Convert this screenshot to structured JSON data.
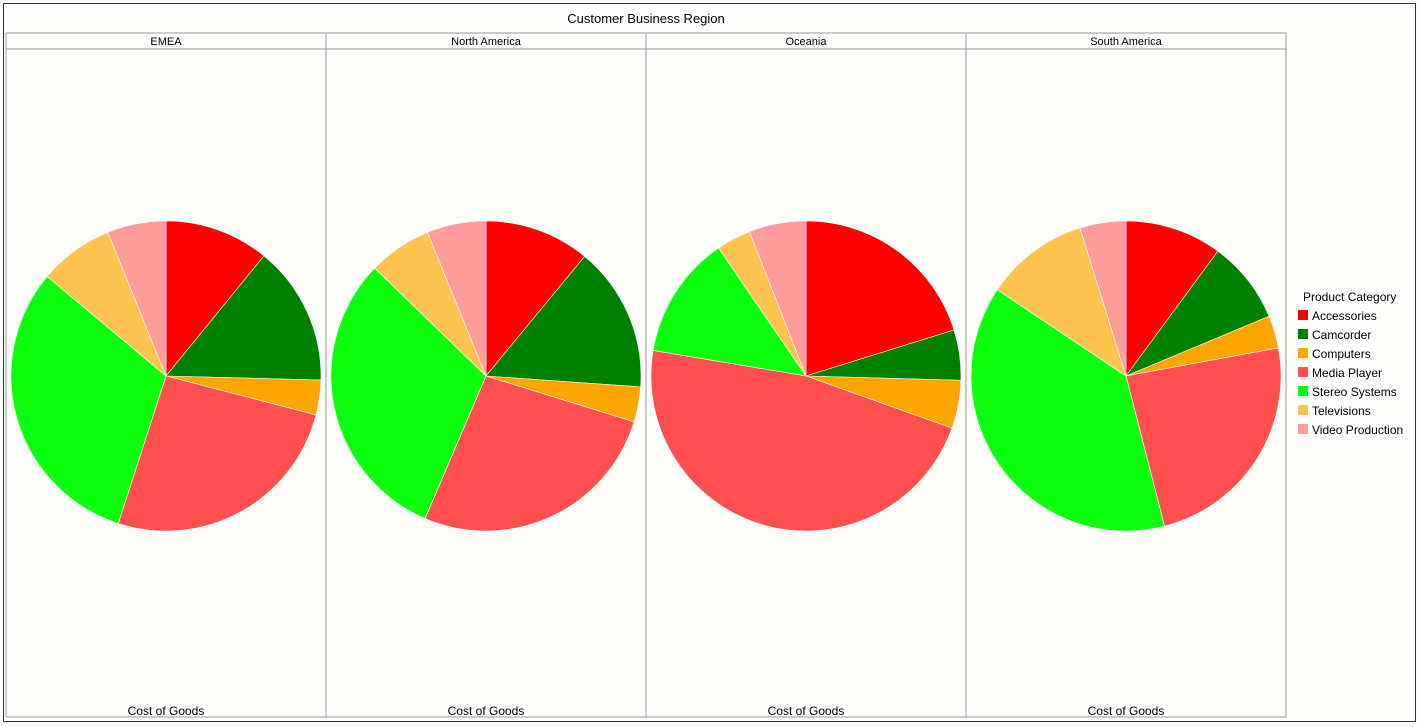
{
  "chart_data": {
    "type": "pie",
    "title": "Customer Business Region",
    "measure_label": "Cost of Goods",
    "legend": {
      "title": "Product Category",
      "placement": "right"
    },
    "categories": [
      "Accessories",
      "Camcorder",
      "Computers",
      "Media Player",
      "Stereo Systems",
      "Televisions",
      "Video Production"
    ],
    "colors": [
      "#ff0000",
      "#008000",
      "#ffa500",
      "#ff4f4f",
      "#0dff10",
      "#ffc44f",
      "#ff9d9d"
    ],
    "panels": [
      {
        "name": "EMEA",
        "values": [
          10.5,
          14.0,
          3.5,
          25.0,
          30.0,
          7.5,
          5.9
        ]
      },
      {
        "name": "North America",
        "values": [
          10.5,
          14.5,
          3.5,
          25.5,
          29.5,
          6.3,
          5.9
        ]
      },
      {
        "name": "Oceania",
        "values": [
          19.7,
          5.1,
          4.9,
          46.0,
          12.5,
          3.5,
          5.8
        ]
      },
      {
        "name": "South America",
        "values": [
          10.1,
          8.6,
          3.4,
          23.9,
          38.4,
          10.8,
          4.8
        ]
      }
    ]
  }
}
